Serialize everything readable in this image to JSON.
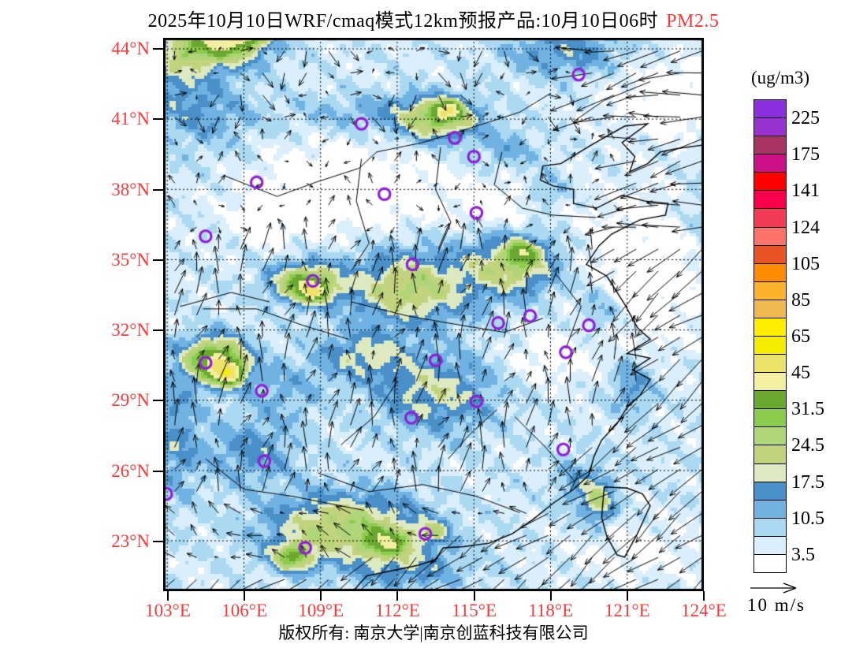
{
  "title": {
    "prefix": "2025年10月10日WRF/cmaq模式12km预报产品:10月10日06时",
    "highlight": "PM2.5"
  },
  "axes": {
    "lat_ticks": [
      "44°N",
      "41°N",
      "38°N",
      "35°N",
      "32°N",
      "29°N",
      "26°N",
      "23°N"
    ],
    "lon_ticks": [
      "103°E",
      "106°E",
      "109°E",
      "112°E",
      "115°E",
      "118°E",
      "121°E",
      "124°E"
    ]
  },
  "colorbar": {
    "unit_label": "(ug/m3)",
    "tick_labels": [
      "225",
      "175",
      "141",
      "124",
      "105",
      "85",
      "65",
      "45",
      "31.5",
      "24.5",
      "17.5",
      "10.5",
      "3.5"
    ],
    "colors_top_to_bottom": [
      "#8C2FE0",
      "#9933D0",
      "#AA3366",
      "#CC1188",
      "#FE0000",
      "#F8004C",
      "#F43B55",
      "#FA7268",
      "#E85426",
      "#FF8C00",
      "#FCB22C",
      "#F2B950",
      "#FFEE00",
      "#F5EC00",
      "#EDE26A",
      "#F2F0A0",
      "#6BA832",
      "#8CCC4C",
      "#B0D478",
      "#C2D37E",
      "#DDE9C0",
      "#4A8FC8",
      "#70B2E2",
      "#ABD9F2",
      "#DAEEFB",
      "#FFFFFF"
    ]
  },
  "wind_legend": {
    "speed_label": "10 m/s"
  },
  "footer": {
    "text": "版权所有: 南京大学|南京创蓝科技有限公司"
  },
  "style": {
    "label_red": "#FA3A3A",
    "marker_purple": "#9020D8"
  },
  "map_data": {
    "type": "filled-contour-map",
    "variable": "PM2.5",
    "unit": "ug/m3",
    "lon_range": [
      102.84,
      124.0
    ],
    "lat_range": [
      20.85,
      44.47
    ],
    "markers_lonlat": [
      [
        119.1,
        42.9
      ],
      [
        110.6,
        40.8
      ],
      [
        114.25,
        40.2
      ],
      [
        115.0,
        39.4
      ],
      [
        106.5,
        38.3
      ],
      [
        111.5,
        37.8
      ],
      [
        115.1,
        37.0
      ],
      [
        104.5,
        36.0
      ],
      [
        112.6,
        34.8
      ],
      [
        108.7,
        34.1
      ],
      [
        115.95,
        32.3
      ],
      [
        117.2,
        32.6
      ],
      [
        119.5,
        32.2
      ],
      [
        118.6,
        31.05
      ],
      [
        113.5,
        30.7
      ],
      [
        115.1,
        28.95
      ],
      [
        112.55,
        28.25
      ],
      [
        104.5,
        30.6
      ],
      [
        106.7,
        29.4
      ],
      [
        106.8,
        26.4
      ],
      [
        102.96,
        25.0
      ],
      [
        108.4,
        22.7
      ],
      [
        113.1,
        23.3
      ],
      [
        118.5,
        26.9
      ]
    ]
  }
}
